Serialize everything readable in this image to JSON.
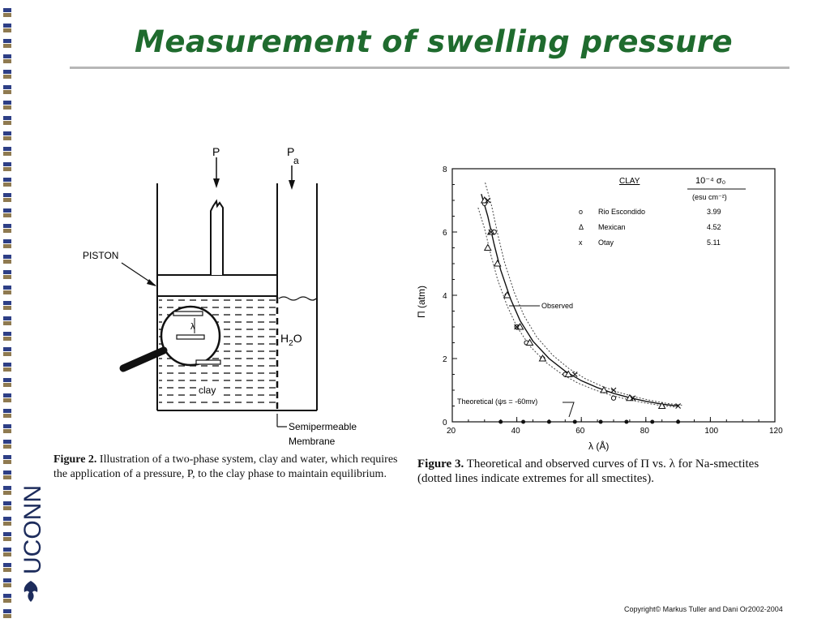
{
  "slide": {
    "title": "Measurement of swelling pressure",
    "copyright": "Copyright© Markus Tuller and Dani Or2002-2004",
    "logo_text": "UCONN"
  },
  "figure2": {
    "label_P": "P",
    "label_Pa": "P",
    "label_Pa_sub": "a",
    "piston": "PISTON",
    "lambda": "λ",
    "water": "H",
    "water_sub": "2",
    "water_end": "O",
    "clay": "clay",
    "membrane_line1": "Semipermeable",
    "membrane_line2": "Membrane",
    "caption_label": "Figure 2.",
    "caption_text": "Illustration of a two-phase system, clay and water, which requires the application of a pressure, P, to the clay phase to maintain equilibrium."
  },
  "figure3": {
    "caption_label": "Figure 3.",
    "caption_text": "Theoretical and observed curves of Π vs. λ for Na-smectites (dotted lines indicate extremes for all smectites).",
    "annotation_observed": "Observed",
    "annotation_theoretical": "Theoretical  (ψs = -60mv)",
    "legend": {
      "header_clay": "CLAY",
      "header_sigma": "10⁻⁴ σ₀",
      "header_units": "(esu cm⁻²)",
      "rows": [
        {
          "marker": "o",
          "name": "Rio Escondido",
          "value": "3.99"
        },
        {
          "marker": "Δ",
          "name": "Mexican",
          "value": "4.52"
        },
        {
          "marker": "x",
          "name": "Otay",
          "value": "5.11"
        }
      ]
    }
  },
  "chart_data": {
    "type": "scatter",
    "title": "",
    "xlabel": "λ (Å)",
    "ylabel": "Π (atm)",
    "xlim": [
      20,
      120
    ],
    "ylim": [
      0,
      8
    ],
    "xticks": [
      20,
      40,
      60,
      80,
      100,
      120
    ],
    "yticks": [
      0,
      2,
      4,
      6,
      8
    ],
    "grid": false,
    "legend_position": "top-right",
    "series": [
      {
        "name": "Rio Escondido",
        "marker": "o",
        "x": [
          30,
          33,
          37,
          40,
          43,
          48,
          55,
          70
        ],
        "y": [
          6.9,
          6.0,
          4.0,
          3.0,
          2.5,
          2.0,
          1.5,
          0.75
        ]
      },
      {
        "name": "Mexican",
        "marker": "triangle",
        "x": [
          30,
          31,
          32,
          34,
          37,
          41,
          44,
          48,
          56,
          67,
          75,
          85
        ],
        "y": [
          7.0,
          5.5,
          6.0,
          5.0,
          4.0,
          3.0,
          2.5,
          2.0,
          1.5,
          1.0,
          0.75,
          0.5
        ]
      },
      {
        "name": "Otay",
        "marker": "x",
        "x": [
          31,
          32,
          40,
          58,
          70,
          76,
          90
        ],
        "y": [
          7.0,
          6.0,
          3.0,
          1.5,
          1.0,
          0.75,
          0.5
        ]
      },
      {
        "name": "Observed",
        "type": "line",
        "x": [
          29,
          31,
          33,
          35,
          38,
          41,
          45,
          50,
          55,
          60,
          65,
          70,
          75,
          80,
          85,
          90
        ],
        "y": [
          7.2,
          6.5,
          5.6,
          4.8,
          3.9,
          3.2,
          2.55,
          2.0,
          1.6,
          1.3,
          1.08,
          0.9,
          0.76,
          0.65,
          0.56,
          0.5
        ]
      },
      {
        "name": "Theoretical",
        "type": "line",
        "x": [
          35,
          42,
          50,
          58,
          66,
          74,
          82,
          90
        ],
        "y": [
          0,
          0,
          0,
          0,
          0,
          0,
          0,
          0
        ]
      }
    ]
  },
  "colors": {
    "title_green": "#1f6b2e",
    "strip_blue": "#2e3f86",
    "strip_brown": "#8f7a50",
    "logo_navy": "#1d2c5c"
  }
}
